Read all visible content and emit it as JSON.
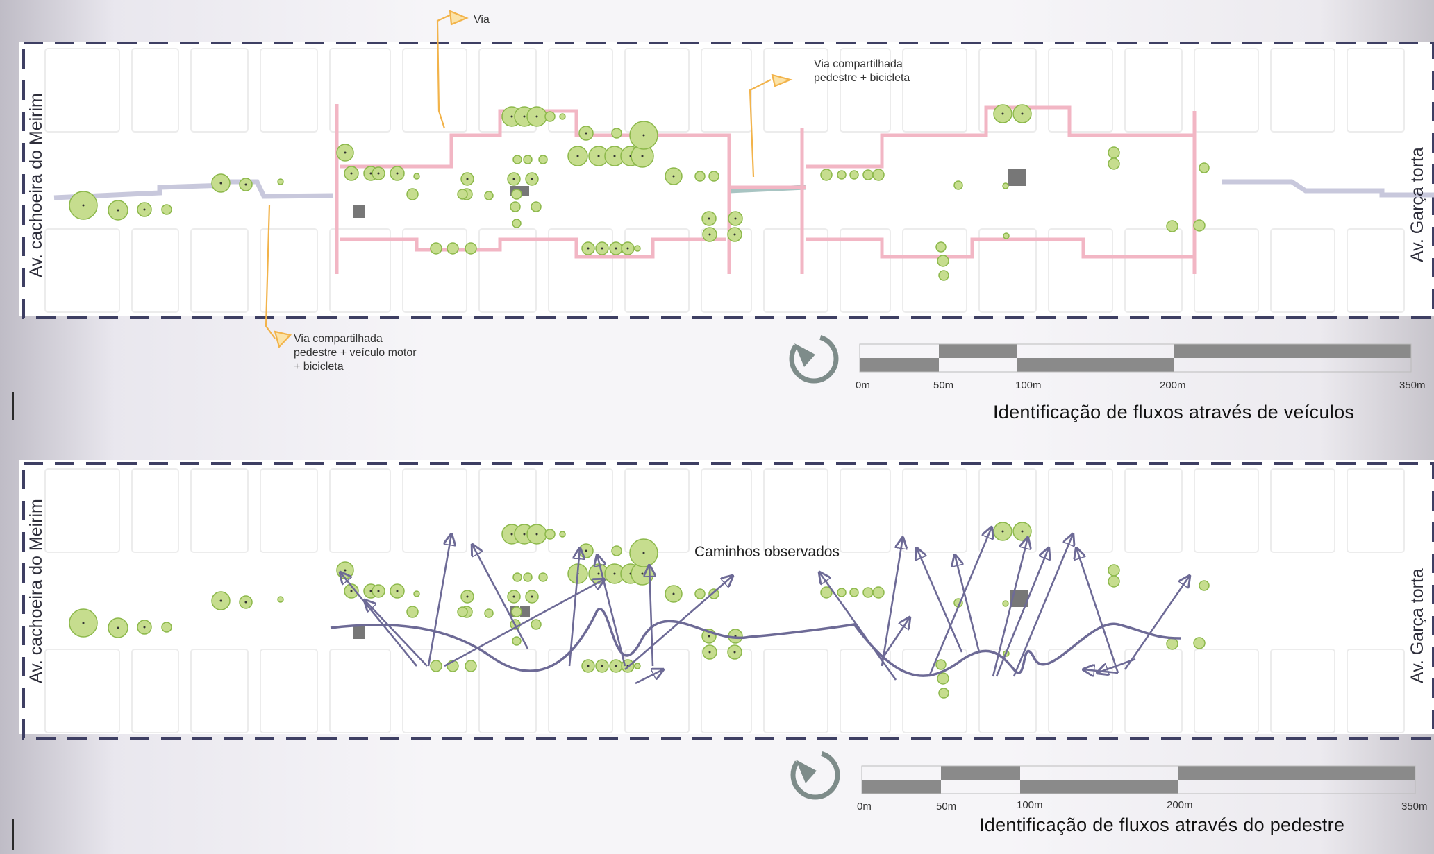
{
  "panels": [
    {
      "left_label": "Av. cachoeira do Meirim",
      "right_label": "Av. Garça torta",
      "title": "Identificação de fluxos através de veículos",
      "annotations": [
        {
          "text": "Via"
        },
        {
          "lines": [
            "Via compartilhada",
            "pedestre + bicicleta"
          ]
        },
        {
          "lines": [
            "Via compartilhada",
            "pedestre + veículo motor",
            "+ bicicleta"
          ]
        }
      ],
      "scale_labels": [
        "0m",
        "50m",
        "100m",
        "200m",
        "350m"
      ]
    },
    {
      "left_label": "Av. cachoeira do Meirim",
      "right_label": "Av. Garça torta",
      "title": "Identificação de fluxos através do pedestre",
      "annotations": [
        {
          "text": "Caminhos observados"
        }
      ],
      "scale_labels": [
        "0m",
        "50m",
        "100m",
        "200m",
        "350m"
      ]
    }
  ],
  "colors": {
    "frame_dash": "#3e3f63",
    "tree_fill": "#c6dd8e",
    "tree_stroke": "#8cb84a",
    "vehicle_route": "#f2b6c4",
    "pedestrian_path": "#6d6a96",
    "annotation_arrow": "#f2b34a",
    "scale_dark": "#8a8a8a"
  },
  "icons": [
    "north-compass-icon",
    "tree-icon",
    "kiosk-square-icon",
    "arrowhead-icon"
  ]
}
